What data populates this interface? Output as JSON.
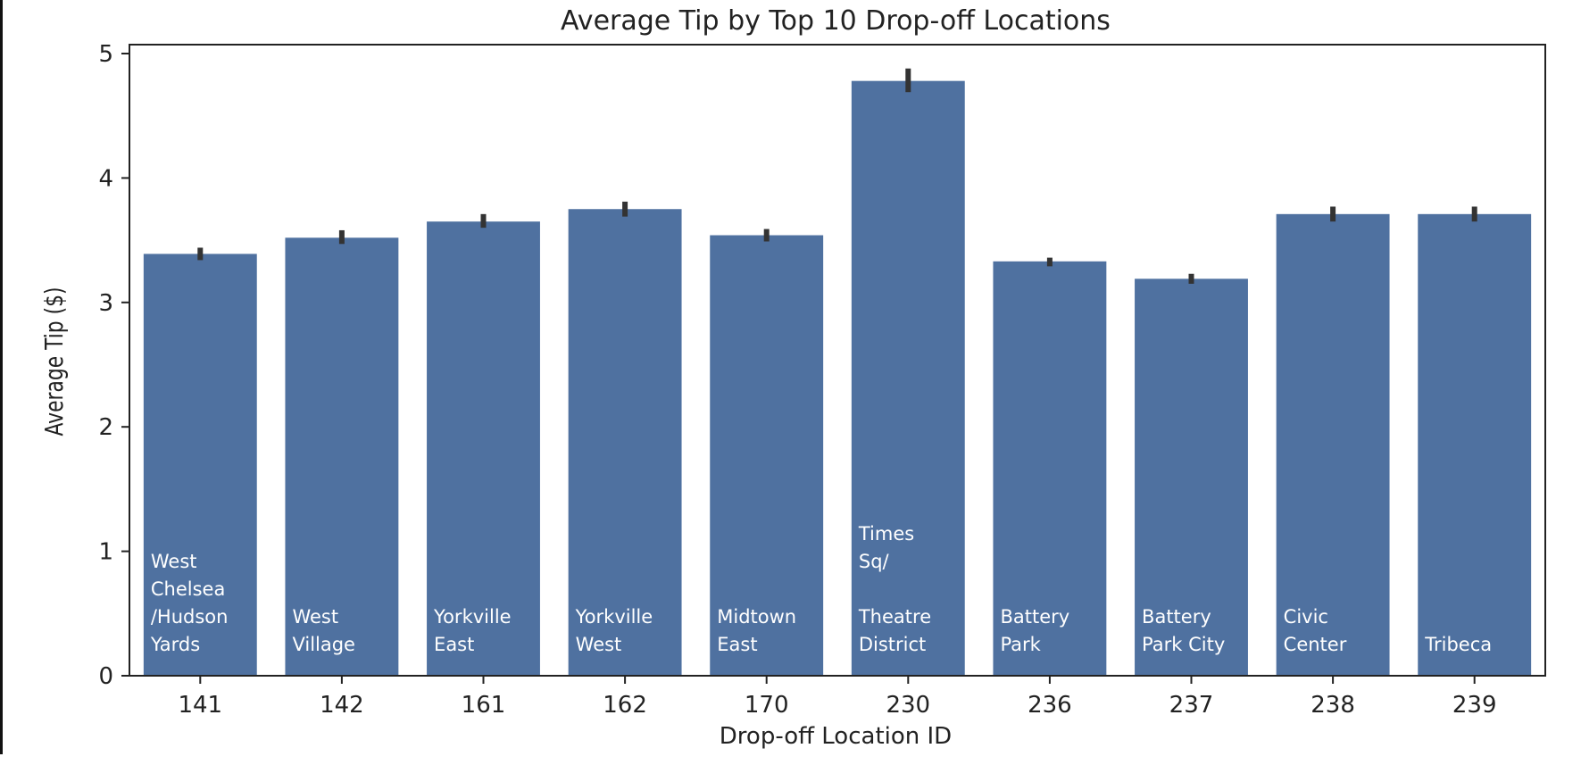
{
  "chart_data": {
    "type": "bar",
    "title": "Average Tip by Top 10 Drop-off Locations",
    "xlabel": "Drop-off Location ID",
    "ylabel": "Average Tip ($)",
    "ylim": [
      0,
      5
    ],
    "yticks": [
      0,
      1,
      2,
      3,
      4,
      5
    ],
    "grid": false,
    "bar_color": "#4f71a0",
    "error_color": "#333333",
    "categories": [
      "141",
      "142",
      "161",
      "162",
      "170",
      "230",
      "236",
      "237",
      "238",
      "239"
    ],
    "values": [
      3.39,
      3.52,
      3.65,
      3.75,
      3.54,
      4.78,
      3.33,
      3.19,
      3.71,
      3.71
    ],
    "error_low": [
      3.34,
      3.47,
      3.6,
      3.69,
      3.49,
      4.69,
      3.29,
      3.15,
      3.65,
      3.65
    ],
    "error_high": [
      3.44,
      3.58,
      3.71,
      3.81,
      3.59,
      4.88,
      3.36,
      3.23,
      3.77,
      3.77
    ],
    "bar_labels": [
      [
        "West",
        "Chelsea",
        "/Hudson",
        "Yards"
      ],
      [
        "West",
        "Village"
      ],
      [
        "Yorkville",
        "East"
      ],
      [
        "Yorkville",
        "West"
      ],
      [
        "Midtown",
        "East"
      ],
      [
        "Times",
        "Sq/",
        "",
        "Theatre",
        "District"
      ],
      [
        "Battery",
        "Park"
      ],
      [
        "Battery",
        "Park City"
      ],
      [
        "Civic",
        "Center"
      ],
      [
        "Tribeca"
      ]
    ]
  }
}
